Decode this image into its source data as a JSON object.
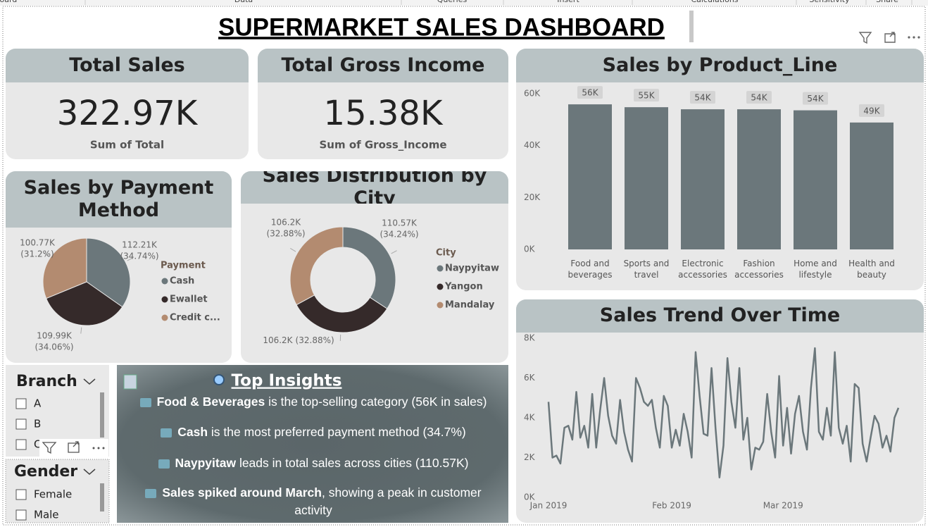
{
  "ribbon": [
    "Clipboard",
    "Data",
    "Queries",
    "Insert",
    "Calculations",
    "Sensitivity",
    "Share"
  ],
  "title": "SUPERMARKET SALES DASHBOARD",
  "cards": [
    {
      "title": "Total Sales",
      "value": "322.97K",
      "label": "Sum of Total"
    },
    {
      "title": "Total Gross Income",
      "value": "15.38K",
      "label": "Sum of Gross_Income"
    }
  ],
  "chart_data": [
    {
      "type": "pie",
      "title": "Sales by Payment Method",
      "categories": [
        "Cash",
        "Ewallet",
        "Credit c..."
      ],
      "values": [
        112.21,
        109.99,
        100.77
      ],
      "value_labels": [
        "112.21K",
        "109.99K",
        "100.77K"
      ],
      "percent_labels": [
        "(34.74%)",
        "(34.06%)",
        "(31.2%)"
      ],
      "colors": [
        "#6b777b",
        "#352a2a",
        "#b38b70"
      ],
      "legend_title": "Payment"
    },
    {
      "type": "donut",
      "title": "Sales Distribution by City",
      "categories": [
        "Naypyitaw",
        "Yangon",
        "Mandalay"
      ],
      "values": [
        110.57,
        106.2,
        106.2
      ],
      "value_labels": [
        "110.57K",
        "106.2K",
        "106.2K"
      ],
      "percent_labels": [
        "(34.24%)",
        "(32.88%)",
        "(32.88%)"
      ],
      "colors": [
        "#6b777b",
        "#352a2a",
        "#b38b70"
      ],
      "legend_title": "City"
    },
    {
      "type": "bar",
      "title": "Sales by Product_Line",
      "categories": [
        "Food and beverages",
        "Sports and travel",
        "Electronic accessories",
        "Fashion accessories",
        "Home and lifestyle",
        "Health and beauty"
      ],
      "values": [
        55900,
        54800,
        54000,
        54000,
        53600,
        48900
      ],
      "value_labels": [
        "56K",
        "55K",
        "54K",
        "54K",
        "54K",
        "49K"
      ],
      "color": "#6b777b",
      "ylim": [
        0,
        60000
      ],
      "yticks": [
        {
          "value": 0,
          "label": "0K"
        },
        {
          "value": 20000,
          "label": "20K"
        },
        {
          "value": 40000,
          "label": "40K"
        },
        {
          "value": 60000,
          "label": "60K"
        }
      ]
    },
    {
      "type": "line",
      "title": "Sales Trend Over Time",
      "values": [
        4800,
        2000,
        2100,
        1700,
        3500,
        3600,
        2900,
        5300,
        3000,
        3600,
        2500,
        5200,
        2500,
        4400,
        6000,
        4100,
        3100,
        2700,
        4900,
        3300,
        2400,
        1800,
        6000,
        5500,
        4800,
        4600,
        4900,
        3500,
        2500,
        5100,
        4600,
        2500,
        3400,
        2600,
        4200,
        3300,
        2000,
        7300,
        5100,
        3200,
        3100,
        6500,
        3500,
        1000,
        2600,
        7000,
        4800,
        3500,
        6500,
        2900,
        4000,
        1400,
        2500,
        2400,
        2800,
        5200,
        3300,
        2000,
        6100,
        2600,
        4500,
        2200,
        4200,
        5100,
        3300,
        2400,
        5500,
        7500,
        3300,
        2900,
        4500,
        3100,
        7300,
        3500,
        2700,
        3600,
        1800,
        5700,
        5500,
        2700,
        1800,
        3000,
        4100,
        3700,
        2500,
        3100,
        2300,
        4000,
        4500
      ],
      "color": "#6b777b",
      "xlim": [
        0,
        88
      ],
      "xticks": [
        {
          "value": 0,
          "label": "Jan 2019"
        },
        {
          "value": 31,
          "label": "Feb 2019"
        },
        {
          "value": 59,
          "label": "Mar 2019"
        }
      ],
      "ylim": [
        0,
        8000
      ],
      "yticks": [
        {
          "value": 0,
          "label": "0K"
        },
        {
          "value": 2000,
          "label": "2K"
        },
        {
          "value": 4000,
          "label": "4K"
        },
        {
          "value": 6000,
          "label": "6K"
        },
        {
          "value": 8000,
          "label": "8K"
        }
      ]
    }
  ],
  "slicers": [
    {
      "title": "Branch",
      "items": [
        "A",
        "B",
        "C"
      ]
    },
    {
      "title": "Gender",
      "items": [
        "Female",
        "Male"
      ]
    }
  ],
  "insights": {
    "title": "Top Insights",
    "items": [
      {
        "strong": "Food & Beverages",
        "text": " is the top-selling category (56K in sales)"
      },
      {
        "strong": "Cash",
        "text": " is the most preferred payment method (34.7%)"
      },
      {
        "strong": "Naypyitaw",
        "text": " leads in total sales across cities (110.57K)"
      },
      {
        "strong": "Sales spiked around March",
        "text": ", showing a peak in customer activity"
      }
    ]
  }
}
